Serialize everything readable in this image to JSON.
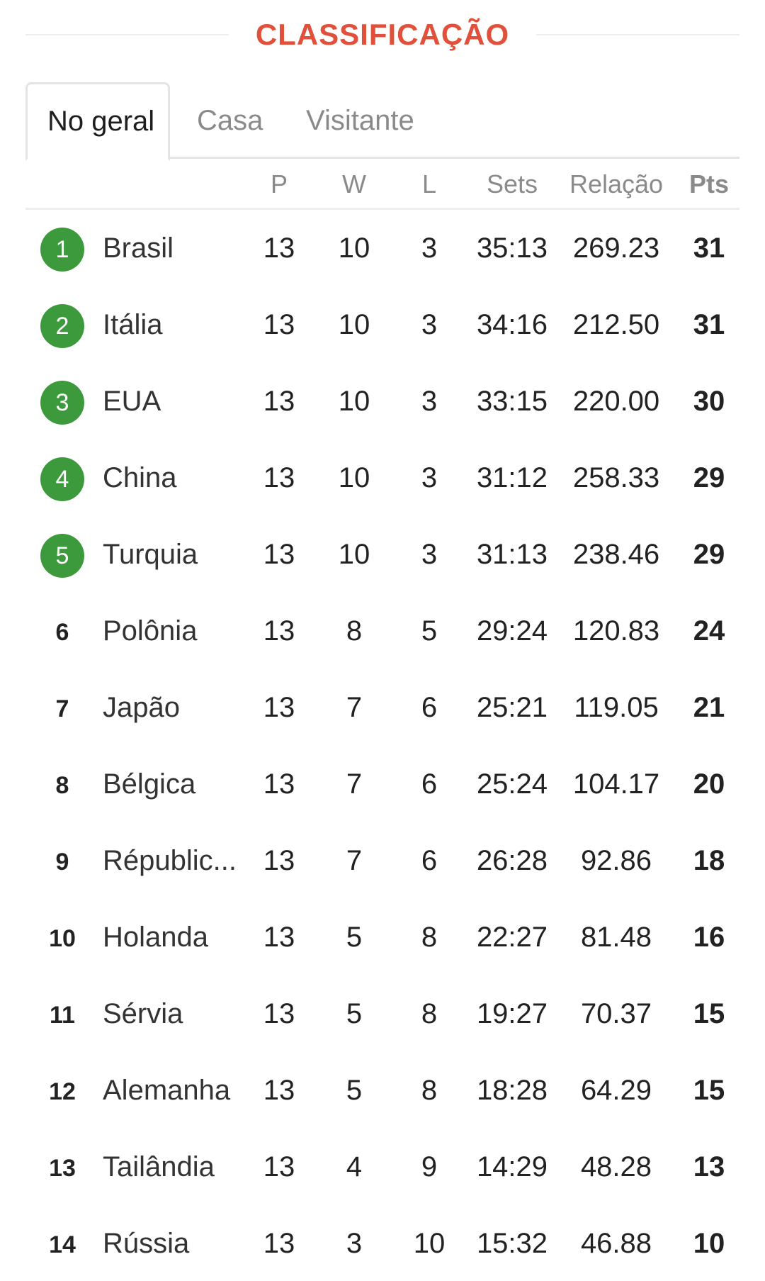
{
  "header": {
    "title": "CLASSIFICAÇÃO"
  },
  "tabs": [
    {
      "label": "No geral",
      "active": true
    },
    {
      "label": "Casa",
      "active": false
    },
    {
      "label": "Visitante",
      "active": false
    }
  ],
  "columns": {
    "p": "P",
    "w": "W",
    "l": "L",
    "sets": "Sets",
    "rel": "Relação",
    "pts": "Pts"
  },
  "colors": {
    "accent": "#e0503a",
    "qualified_badge": "#3c9a3c"
  },
  "rows": [
    {
      "rank": "1",
      "team": "Brasil",
      "p": "13",
      "w": "10",
      "l": "3",
      "sets": "35:13",
      "rel": "269.23",
      "pts": "31",
      "qualified": true
    },
    {
      "rank": "2",
      "team": "Itália",
      "p": "13",
      "w": "10",
      "l": "3",
      "sets": "34:16",
      "rel": "212.50",
      "pts": "31",
      "qualified": true
    },
    {
      "rank": "3",
      "team": "EUA",
      "p": "13",
      "w": "10",
      "l": "3",
      "sets": "33:15",
      "rel": "220.00",
      "pts": "30",
      "qualified": true
    },
    {
      "rank": "4",
      "team": "China",
      "p": "13",
      "w": "10",
      "l": "3",
      "sets": "31:12",
      "rel": "258.33",
      "pts": "29",
      "qualified": true
    },
    {
      "rank": "5",
      "team": "Turquia",
      "p": "13",
      "w": "10",
      "l": "3",
      "sets": "31:13",
      "rel": "238.46",
      "pts": "29",
      "qualified": true
    },
    {
      "rank": "6",
      "team": "Polônia",
      "p": "13",
      "w": "8",
      "l": "5",
      "sets": "29:24",
      "rel": "120.83",
      "pts": "24",
      "qualified": false
    },
    {
      "rank": "7",
      "team": "Japão",
      "p": "13",
      "w": "7",
      "l": "6",
      "sets": "25:21",
      "rel": "119.05",
      "pts": "21",
      "qualified": false
    },
    {
      "rank": "8",
      "team": "Bélgica",
      "p": "13",
      "w": "7",
      "l": "6",
      "sets": "25:24",
      "rel": "104.17",
      "pts": "20",
      "qualified": false
    },
    {
      "rank": "9",
      "team": "Républic...",
      "p": "13",
      "w": "7",
      "l": "6",
      "sets": "26:28",
      "rel": "92.86",
      "pts": "18",
      "qualified": false
    },
    {
      "rank": "10",
      "team": "Holanda",
      "p": "13",
      "w": "5",
      "l": "8",
      "sets": "22:27",
      "rel": "81.48",
      "pts": "16",
      "qualified": false
    },
    {
      "rank": "11",
      "team": "Sérvia",
      "p": "13",
      "w": "5",
      "l": "8",
      "sets": "19:27",
      "rel": "70.37",
      "pts": "15",
      "qualified": false
    },
    {
      "rank": "12",
      "team": "Alemanha",
      "p": "13",
      "w": "5",
      "l": "8",
      "sets": "18:28",
      "rel": "64.29",
      "pts": "15",
      "qualified": false
    },
    {
      "rank": "13",
      "team": "Tailândia",
      "p": "13",
      "w": "4",
      "l": "9",
      "sets": "14:29",
      "rel": "48.28",
      "pts": "13",
      "qualified": false
    },
    {
      "rank": "14",
      "team": "Rússia",
      "p": "13",
      "w": "3",
      "l": "10",
      "sets": "15:32",
      "rel": "46.88",
      "pts": "10",
      "qualified": false
    }
  ]
}
